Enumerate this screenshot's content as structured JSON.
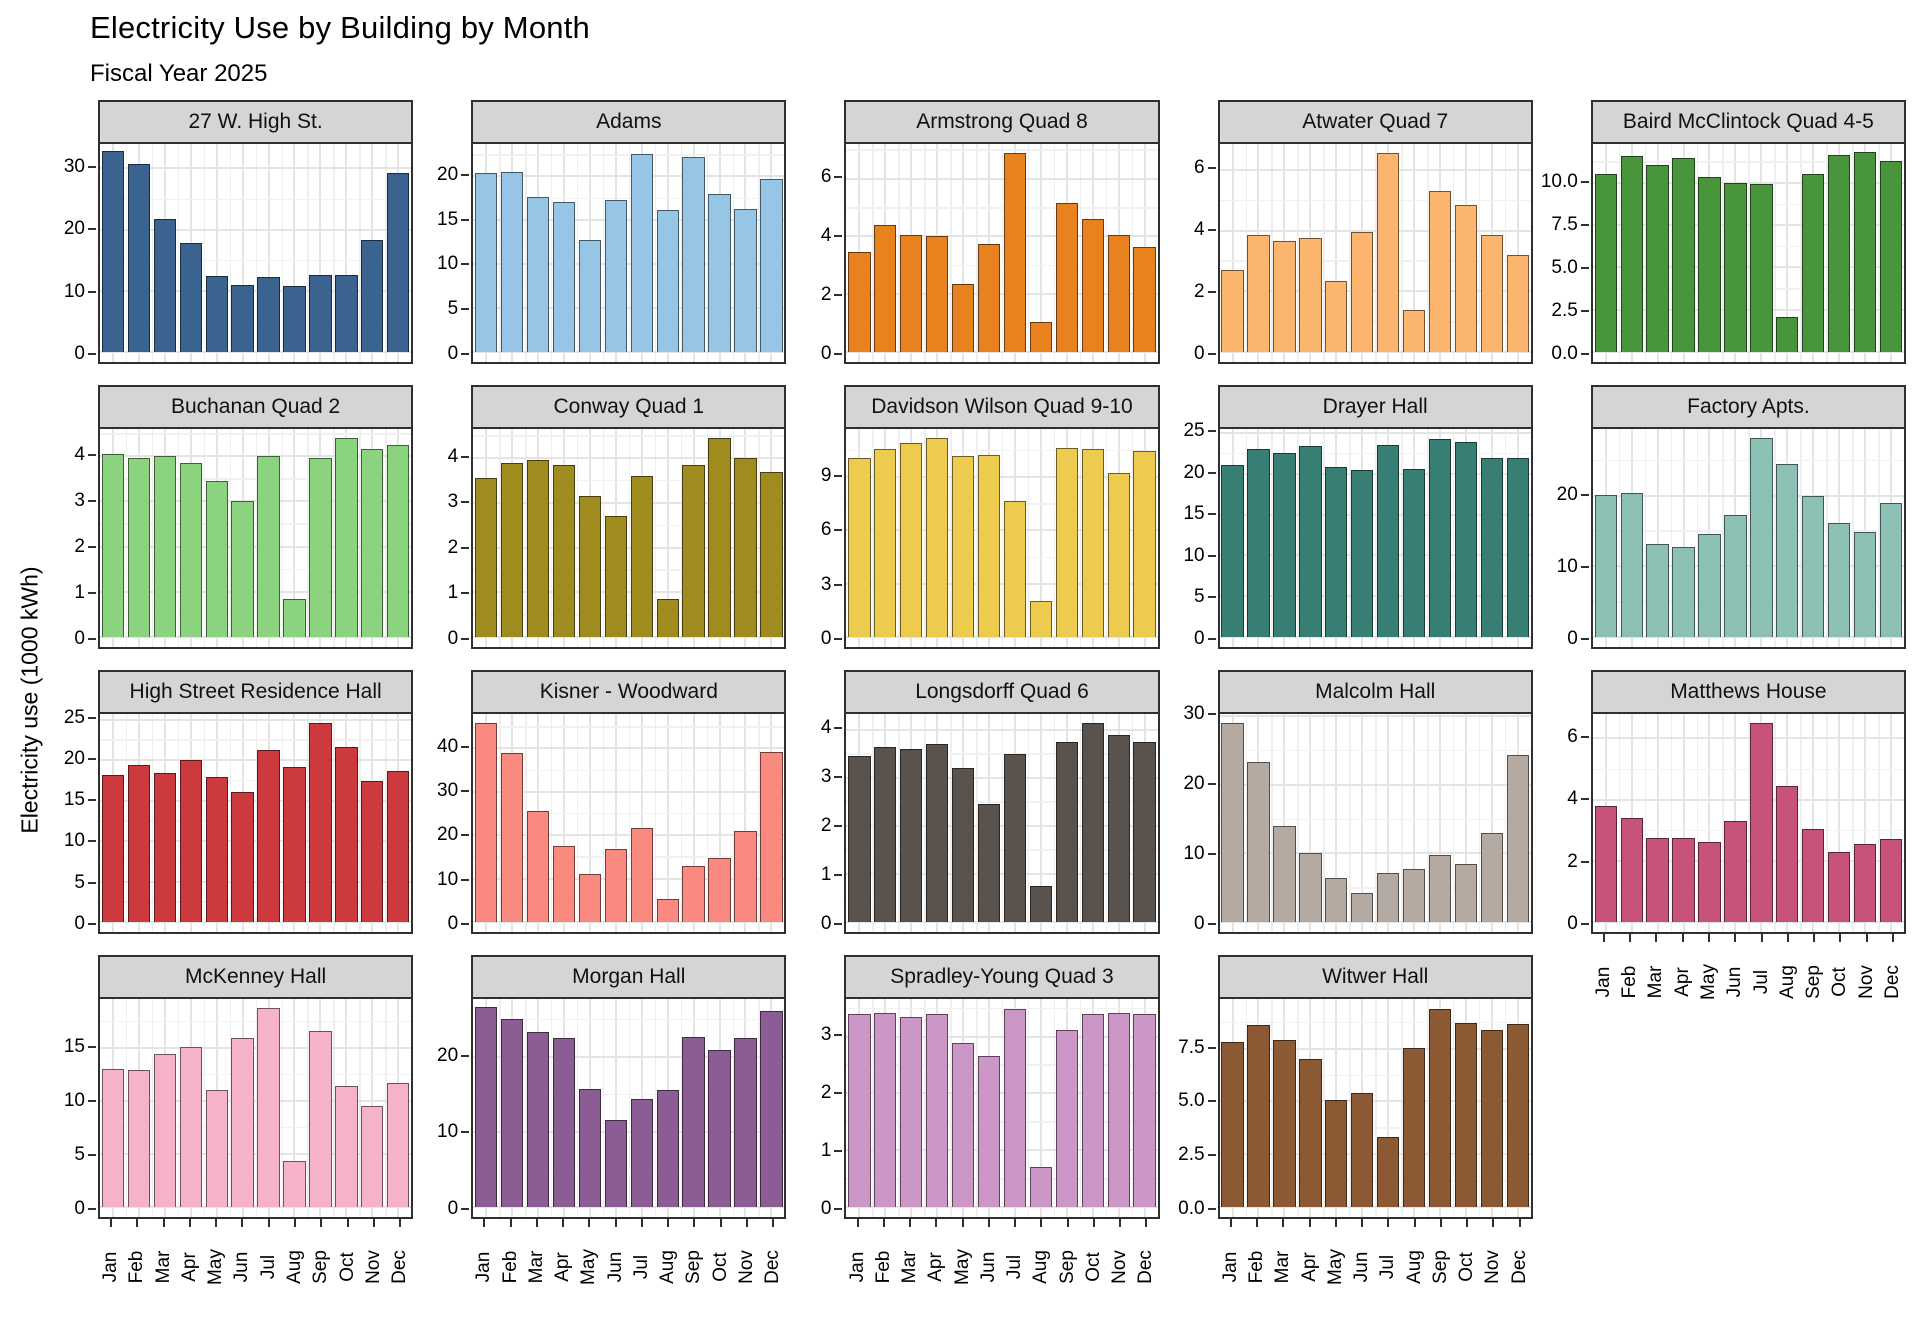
{
  "chart_data": {
    "type": "bar",
    "title": "Electricity Use by Building by Month",
    "subtitle": "Fiscal Year 2025",
    "ylabel": "Electricity use (1000 kWh)",
    "xlabel": "",
    "categories": [
      "Jan",
      "Feb",
      "Mar",
      "Apr",
      "May",
      "Jun",
      "Jul",
      "Aug",
      "Sep",
      "Oct",
      "Nov",
      "Dec"
    ],
    "facet_grid": {
      "rows": 4,
      "cols": 5,
      "x_label_rotation": 90,
      "grid": "on",
      "legend": "none"
    },
    "facets": [
      {
        "name": "27 W. High St.",
        "color": "#3A6390",
        "y_max": 34.0,
        "show_x_axis": false,
        "y_tick_values": [
          0,
          10,
          20,
          30
        ],
        "y_tick_labels": [
          "0",
          "10",
          "20",
          "30"
        ],
        "values": [
          32.8,
          30.8,
          21.7,
          17.9,
          12.4,
          11.0,
          12.2,
          10.8,
          12.6,
          12.6,
          18.3,
          29.2
        ]
      },
      {
        "name": "Adams",
        "color": "#97C5E5",
        "y_max": 23.7,
        "show_x_axis": false,
        "y_tick_values": [
          0,
          5,
          10,
          15,
          20
        ],
        "y_tick_labels": [
          "0",
          "5",
          "10",
          "15",
          "20"
        ],
        "values": [
          20.4,
          20.5,
          17.7,
          17.1,
          12.8,
          17.3,
          22.6,
          16.2,
          22.2,
          18.0,
          16.3,
          19.7
        ]
      },
      {
        "name": "Armstrong Quad 8",
        "color": "#E8821E",
        "y_max": 7.2,
        "show_x_axis": false,
        "y_tick_values": [
          0,
          2,
          4,
          6
        ],
        "y_tick_labels": [
          "0",
          "2",
          "4",
          "6"
        ],
        "values": [
          3.45,
          4.4,
          4.05,
          4.0,
          2.35,
          3.75,
          6.9,
          1.05,
          5.15,
          4.6,
          4.05,
          3.65
        ]
      },
      {
        "name": "Atwater Quad 7",
        "color": "#FBB56E",
        "y_max": 6.85,
        "show_x_axis": false,
        "y_tick_values": [
          0,
          2,
          4,
          6
        ],
        "y_tick_labels": [
          "0",
          "2",
          "4",
          "6"
        ],
        "values": [
          2.7,
          3.85,
          3.65,
          3.75,
          2.35,
          3.95,
          6.55,
          1.4,
          5.3,
          4.85,
          3.85,
          3.2
        ]
      },
      {
        "name": "Baird McClintock Quad 4-5",
        "color": "#48953C",
        "y_max": 12.3,
        "show_x_axis": false,
        "y_tick_values": [
          0,
          2.5,
          5,
          7.5,
          10
        ],
        "y_tick_labels": [
          "0.0",
          "2.5",
          "5.0",
          "7.5",
          "10.0"
        ],
        "values": [
          10.5,
          11.6,
          11.05,
          11.45,
          10.35,
          10.0,
          9.95,
          2.1,
          10.5,
          11.65,
          11.8,
          11.3
        ]
      },
      {
        "name": "Buchanan Quad 2",
        "color": "#8BD37F",
        "y_max": 4.6,
        "show_x_axis": false,
        "y_tick_values": [
          0,
          1,
          2,
          3,
          4
        ],
        "y_tick_labels": [
          "0",
          "1",
          "2",
          "3",
          "4"
        ],
        "values": [
          4.05,
          3.95,
          4.0,
          3.85,
          3.45,
          3.0,
          4.0,
          0.85,
          3.95,
          4.4,
          4.15,
          4.25
        ]
      },
      {
        "name": "Conway Quad 1",
        "color": "#A08B1E",
        "y_max": 4.65,
        "show_x_axis": false,
        "y_tick_values": [
          0,
          1,
          2,
          3,
          4
        ],
        "y_tick_labels": [
          "0",
          "1",
          "2",
          "3",
          "4"
        ],
        "values": [
          3.55,
          3.9,
          3.95,
          3.85,
          3.15,
          2.7,
          3.6,
          0.85,
          3.85,
          4.45,
          4.0,
          3.7
        ]
      },
      {
        "name": "Davidson Wilson Quad 9-10",
        "color": "#EDCB4F",
        "y_max": 11.7,
        "show_x_axis": false,
        "y_tick_values": [
          0,
          3,
          6,
          9
        ],
        "y_tick_labels": [
          "0",
          "3",
          "6",
          "9"
        ],
        "values": [
          10.05,
          10.55,
          10.9,
          11.2,
          10.2,
          10.25,
          7.65,
          2.05,
          10.65,
          10.6,
          9.25,
          10.45
        ]
      },
      {
        "name": "Drayer Hall",
        "color": "#377E74",
        "y_max": 25.5,
        "show_x_axis": false,
        "y_tick_values": [
          0,
          5,
          10,
          15,
          20,
          25
        ],
        "y_tick_labels": [
          "0",
          "5",
          "10",
          "15",
          "20",
          "25"
        ],
        "values": [
          21.1,
          23.1,
          22.5,
          23.4,
          20.8,
          20.5,
          23.5,
          20.6,
          24.3,
          23.9,
          21.9,
          21.9
        ]
      },
      {
        "name": "Factory Apts.",
        "color": "#8DC0B5",
        "y_max": 29.4,
        "show_x_axis": false,
        "y_tick_values": [
          0,
          10,
          20
        ],
        "y_tick_labels": [
          "0",
          "10",
          "20"
        ],
        "values": [
          20.1,
          20.3,
          13.2,
          12.7,
          14.5,
          17.2,
          28.1,
          24.4,
          19.9,
          16.1,
          14.8,
          18.9
        ]
      },
      {
        "name": "High Street Residence Hall",
        "color": "#CC3A3E",
        "y_max": 25.7,
        "show_x_axis": false,
        "y_tick_values": [
          0,
          5,
          10,
          15,
          20,
          25
        ],
        "y_tick_labels": [
          "0",
          "5",
          "10",
          "15",
          "20",
          "25"
        ],
        "values": [
          18.2,
          19.4,
          18.4,
          20.0,
          17.9,
          16.1,
          21.3,
          19.2,
          24.6,
          21.6,
          17.4,
          18.6
        ]
      },
      {
        "name": "Kisner - Woodward",
        "color": "#FA8A80",
        "y_max": 47.9,
        "show_x_axis": false,
        "y_tick_values": [
          0,
          10,
          20,
          30,
          40
        ],
        "y_tick_labels": [
          "0",
          "10",
          "20",
          "30",
          "40"
        ],
        "values": [
          45.8,
          38.9,
          25.6,
          17.5,
          11.0,
          16.9,
          21.6,
          5.2,
          12.8,
          14.8,
          21.0,
          39.2
        ]
      },
      {
        "name": "Longsdorff Quad 6",
        "color": "#5A524C",
        "y_max": 4.33,
        "show_x_axis": false,
        "y_tick_values": [
          0,
          1,
          2,
          3,
          4
        ],
        "y_tick_labels": [
          "0",
          "1",
          "2",
          "3",
          "4"
        ],
        "values": [
          3.45,
          3.65,
          3.6,
          3.7,
          3.2,
          2.45,
          3.5,
          0.75,
          3.75,
          4.15,
          3.9,
          3.75
        ]
      },
      {
        "name": "Malcolm Hall",
        "color": "#B4AAA1",
        "y_max": 30.3,
        "show_x_axis": false,
        "y_tick_values": [
          0,
          10,
          20,
          30
        ],
        "y_tick_labels": [
          "0",
          "10",
          "20",
          "30"
        ],
        "values": [
          29.0,
          23.3,
          14.0,
          10.0,
          6.4,
          4.3,
          7.2,
          7.7,
          9.7,
          8.4,
          13.0,
          24.3
        ]
      },
      {
        "name": "Matthews House",
        "color": "#C7537A",
        "y_max": 6.8,
        "show_x_axis": true,
        "y_tick_values": [
          0,
          2,
          4,
          6
        ],
        "y_tick_labels": [
          "0",
          "2",
          "4",
          "6"
        ],
        "values": [
          3.8,
          3.4,
          2.75,
          2.75,
          2.6,
          3.3,
          6.5,
          4.45,
          3.05,
          2.3,
          2.55,
          2.7
        ]
      },
      {
        "name": "McKenney Hall",
        "color": "#F6B3C8",
        "y_max": 19.6,
        "show_x_axis": true,
        "y_tick_values": [
          0,
          5,
          10,
          15
        ],
        "y_tick_labels": [
          "0",
          "5",
          "10",
          "15"
        ],
        "values": [
          13.0,
          12.9,
          14.4,
          15.1,
          11.0,
          15.9,
          18.8,
          4.3,
          16.6,
          11.4,
          9.5,
          11.7
        ]
      },
      {
        "name": "Morgan Hall",
        "color": "#8C5C94",
        "y_max": 27.7,
        "show_x_axis": true,
        "y_tick_values": [
          0,
          10,
          20
        ],
        "y_tick_labels": [
          "0",
          "10",
          "20"
        ],
        "values": [
          26.6,
          25.0,
          23.3,
          22.5,
          15.7,
          11.6,
          14.4,
          15.6,
          22.7,
          20.9,
          22.5,
          26.1
        ]
      },
      {
        "name": "Spradley-Young  Quad 3",
        "color": "#CC96C7",
        "y_max": 3.66,
        "show_x_axis": true,
        "y_tick_values": [
          0,
          1,
          2,
          3
        ],
        "y_tick_labels": [
          "0",
          "1",
          "2",
          "3"
        ],
        "values": [
          3.4,
          3.41,
          3.34,
          3.39,
          2.89,
          2.66,
          3.49,
          0.7,
          3.11,
          3.4,
          3.41,
          3.4
        ]
      },
      {
        "name": "Witwer Hall",
        "color": "#8B5A34",
        "y_max": 9.85,
        "show_x_axis": true,
        "y_tick_values": [
          0,
          2.5,
          5,
          7.5
        ],
        "y_tick_labels": [
          "0.0",
          "2.5",
          "5.0",
          "7.5"
        ],
        "values": [
          7.8,
          8.6,
          7.9,
          7.0,
          5.05,
          5.4,
          3.3,
          7.55,
          9.4,
          8.7,
          8.4,
          8.65
        ]
      }
    ]
  }
}
